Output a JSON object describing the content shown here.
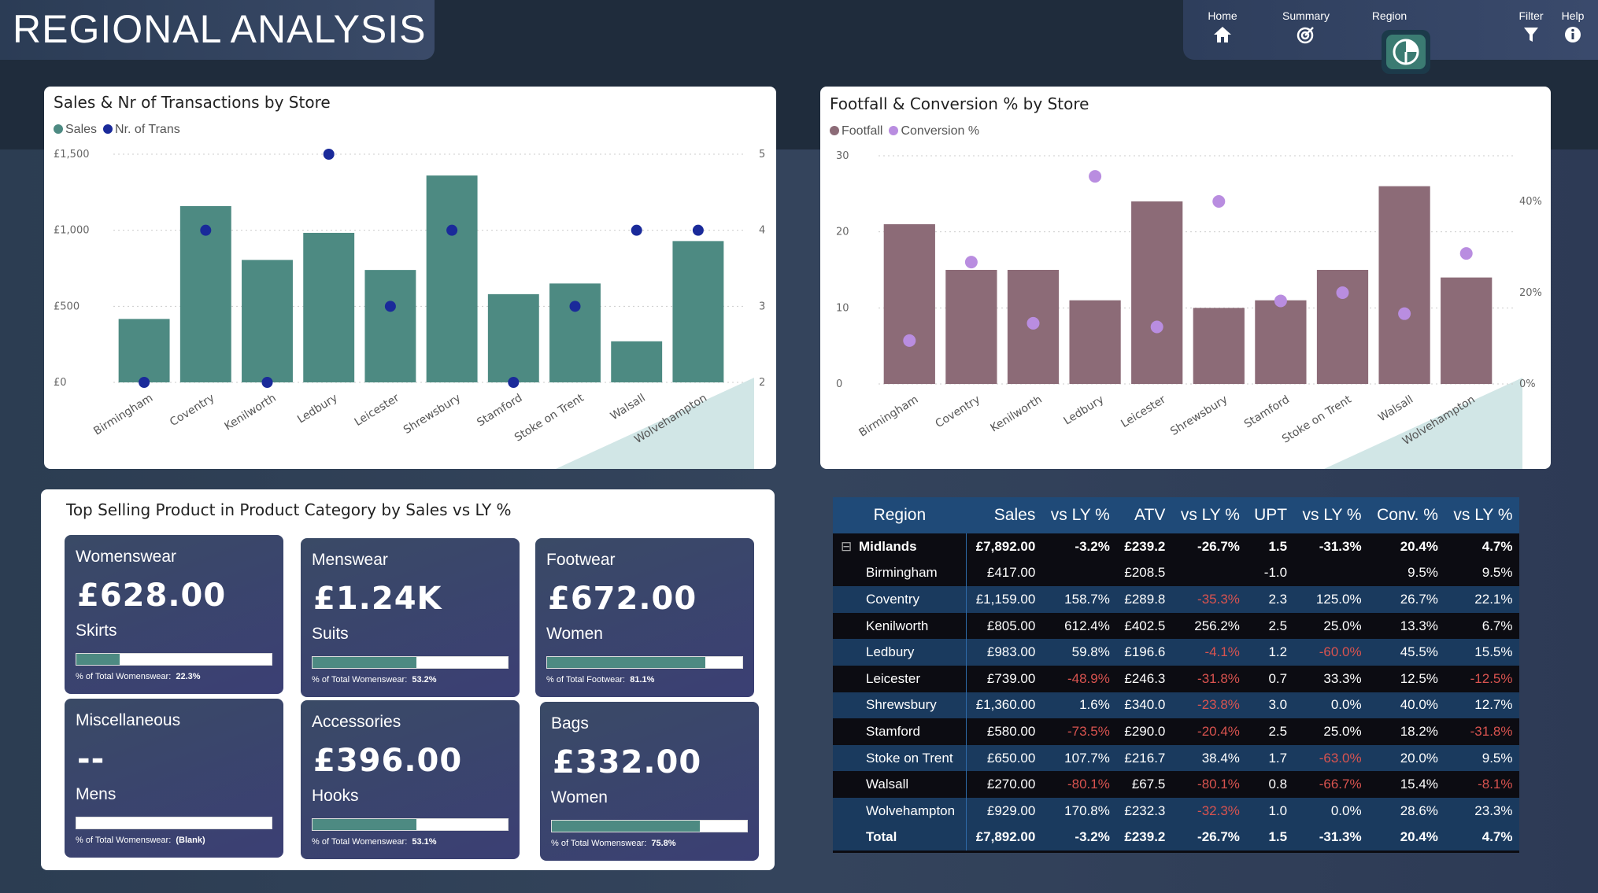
{
  "page": {
    "title": "REGIONAL ANALYSIS"
  },
  "nav": [
    {
      "label": "Home",
      "icon": "home-icon"
    },
    {
      "label": "Summary",
      "icon": "target-icon"
    },
    {
      "label": "Region",
      "icon": "pie-chart-icon",
      "active": true
    },
    {
      "label": "Filter",
      "icon": "filter-icon"
    },
    {
      "label": "Help",
      "icon": "info-icon"
    }
  ],
  "sales_chart": {
    "title": "Sales & Nr of Transactions by Store",
    "legend": [
      {
        "label": "Sales",
        "color": "#4d8a82"
      },
      {
        "label": "Nr. of Trans",
        "color": "#1a2a9a"
      }
    ],
    "y_left_ticks": [
      "£1,500",
      "£1,000",
      "£500",
      "£0"
    ],
    "y_right_ticks": [
      "5",
      "4",
      "3",
      "2"
    ]
  },
  "footfall_chart": {
    "title": "Footfall & Conversion % by Store",
    "legend": [
      {
        "label": "Footfall",
        "color": "#8c6b77"
      },
      {
        "label": "Conversion %",
        "color": "#b98de0"
      }
    ],
    "y_left_ticks": [
      "30",
      "20",
      "10",
      "0"
    ],
    "y_right_ticks": [
      "40%",
      "20%",
      "0%"
    ]
  },
  "chart_data": [
    {
      "type": "bar",
      "title": "Sales & Nr of Transactions by Store",
      "categories": [
        "Birmingham",
        "Coventry",
        "Kenilworth",
        "Ledbury",
        "Leicester",
        "Shrewsbury",
        "Stamford",
        "Stoke on Trent",
        "Walsall",
        "Wolvehampton"
      ],
      "series": [
        {
          "name": "Sales",
          "axis": "left",
          "values": [
            417,
            1159,
            805,
            983,
            739,
            1360,
            580,
            650,
            270,
            929
          ]
        },
        {
          "name": "Nr. of Trans",
          "axis": "right",
          "mark": "scatter",
          "values": [
            2,
            4,
            2,
            5,
            3,
            4,
            2,
            3,
            4,
            4
          ]
        }
      ],
      "ylim": [
        0,
        1500
      ],
      "y2lim": [
        2,
        5
      ],
      "legend": "top-left"
    },
    {
      "type": "bar",
      "title": "Footfall & Conversion % by Store",
      "categories": [
        "Birmingham",
        "Coventry",
        "Kenilworth",
        "Ledbury",
        "Leicester",
        "Shrewsbury",
        "Stamford",
        "Stoke on Trent",
        "Walsall",
        "Wolvehampton"
      ],
      "series": [
        {
          "name": "Footfall",
          "axis": "left",
          "values": [
            21,
            15,
            15,
            11,
            24,
            10,
            11,
            15,
            26,
            14
          ]
        },
        {
          "name": "Conversion %",
          "axis": "right",
          "mark": "scatter",
          "values": [
            9.5,
            26.7,
            13.3,
            45.5,
            12.5,
            40.0,
            18.2,
            20.0,
            15.4,
            28.6
          ]
        }
      ],
      "ylim": [
        0,
        30
      ],
      "y2lim": [
        0,
        50
      ],
      "legend": "top-left"
    }
  ],
  "products": {
    "title": "Top Selling Product in Product Category by Sales vs LY %",
    "cards": [
      {
        "category": "Womenswear",
        "value": "£628.00",
        "product": "Skirts",
        "pct": 22.3,
        "footnote": "% of Total Womenswear:",
        "footval": "22.3%"
      },
      {
        "category": "Menswear",
        "value": "£1.24K",
        "product": "Suits",
        "pct": 53.2,
        "footnote": "% of Total Womenswear:",
        "footval": "53.2%"
      },
      {
        "category": "Footwear",
        "value": "£672.00",
        "product": "Women",
        "pct": 81.1,
        "footnote": "% of Total Footwear:",
        "footval": "81.1%"
      },
      {
        "category": "Miscellaneous",
        "value": "--",
        "product": "Mens",
        "pct": 0,
        "footnote": "% of Total Womenswear:",
        "footval": "(Blank)"
      },
      {
        "category": "Accessories",
        "value": "£396.00",
        "product": "Hooks",
        "pct": 53.1,
        "footnote": "% of Total Womenswear:",
        "footval": "53.1%"
      },
      {
        "category": "Bags",
        "value": "£332.00",
        "product": "Women",
        "pct": 75.8,
        "footnote": "% of Total Womenswear:",
        "footval": "75.8%"
      }
    ]
  },
  "table": {
    "headers": [
      "Region",
      "Sales",
      "vs LY %",
      "ATV",
      "vs LY %",
      "UPT",
      "vs LY %",
      "Conv. %",
      "vs LY %"
    ],
    "region_row": [
      "Midlands",
      "£7,892.00",
      "-3.2%",
      "£239.2",
      "-26.7%",
      "1.5",
      "-31.3%",
      "20.4%",
      "4.7%"
    ],
    "rows": [
      [
        "Birmingham",
        "£417.00",
        "",
        "£208.5",
        "",
        "-1.0",
        "",
        "9.5%",
        "9.5%"
      ],
      [
        "Coventry",
        "£1,159.00",
        "158.7%",
        "£289.8",
        "-35.3%",
        "2.3",
        "125.0%",
        "26.7%",
        "22.1%"
      ],
      [
        "Kenilworth",
        "£805.00",
        "612.4%",
        "£402.5",
        "256.2%",
        "2.5",
        "25.0%",
        "13.3%",
        "6.7%"
      ],
      [
        "Ledbury",
        "£983.00",
        "59.8%",
        "£196.6",
        "-4.1%",
        "1.2",
        "-60.0%",
        "45.5%",
        "15.5%"
      ],
      [
        "Leicester",
        "£739.00",
        "-48.9%",
        "£246.3",
        "-31.8%",
        "0.7",
        "33.3%",
        "12.5%",
        "-12.5%"
      ],
      [
        "Shrewsbury",
        "£1,360.00",
        "1.6%",
        "£340.0",
        "-23.8%",
        "3.0",
        "0.0%",
        "40.0%",
        "12.7%"
      ],
      [
        "Stamford",
        "£580.00",
        "-73.5%",
        "£290.0",
        "-20.4%",
        "2.5",
        "25.0%",
        "18.2%",
        "-31.8%"
      ],
      [
        "Stoke on Trent",
        "£650.00",
        "107.7%",
        "£216.7",
        "38.4%",
        "1.7",
        "-63.0%",
        "20.0%",
        "9.5%"
      ],
      [
        "Walsall",
        "£270.00",
        "-80.1%",
        "£67.5",
        "-80.1%",
        "0.8",
        "-66.7%",
        "15.4%",
        "-8.1%"
      ],
      [
        "Wolvehampton",
        "£929.00",
        "170.8%",
        "£232.3",
        "-32.3%",
        "1.0",
        "0.0%",
        "28.6%",
        "23.3%"
      ]
    ],
    "total_row": [
      "Total",
      "£7,892.00",
      "-3.2%",
      "£239.2",
      "-26.7%",
      "1.5",
      "-31.3%",
      "20.4%",
      "4.7%"
    ],
    "negative_color": "#d9534f"
  }
}
